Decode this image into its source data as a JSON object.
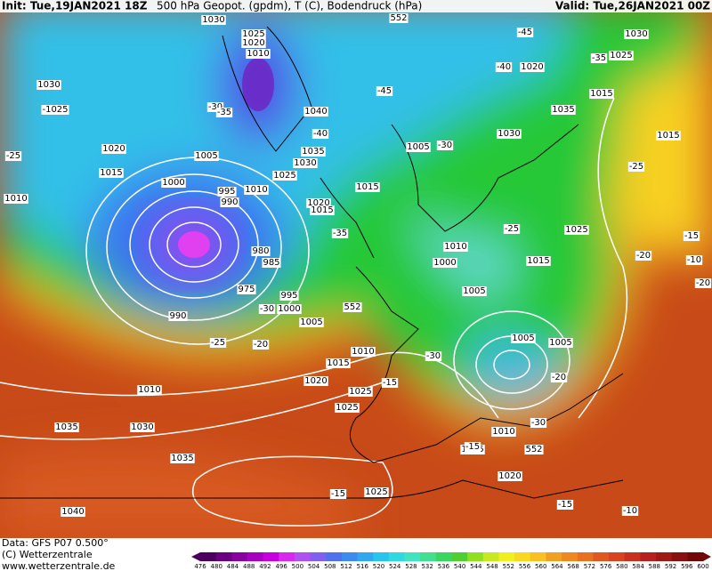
{
  "header": {
    "init": "Init: Tue,19JAN2021 18Z",
    "title": "500 hPa Geopot. (gpdm), T (C), Bodendruck (hPa)",
    "valid": "Valid: Tue,26JAN2021 00Z"
  },
  "footer": {
    "data": "Data: GFS P07 0.500°",
    "copyright": "(C) Wetterzentrale",
    "url": "www.wetterzentrale.de"
  },
  "map": {
    "labels": [
      "1030",
      "1025",
      "1020",
      "1010",
      "-30",
      "-35",
      "1030",
      "-1025",
      "1020",
      "1015",
      "-25",
      "1010",
      "1005",
      "1000",
      "995",
      "990",
      "980",
      "985",
      "975",
      "995",
      "990",
      "1000",
      "-30",
      "1005",
      "-25",
      "-20",
      "552",
      "1010",
      "1015",
      "1020",
      "1025",
      "-15",
      "1010",
      "1035",
      "1030",
      "1025",
      "1040",
      "1035",
      "1030",
      "1010",
      "-40",
      "1025",
      "1020",
      "1015",
      "1005",
      "-30",
      "1015",
      "-35",
      "-25",
      "1010",
      "1000",
      "1005",
      "1015",
      "1005",
      "1005",
      "-30",
      "-30",
      "1010",
      "552",
      "1015",
      "1020",
      "-15",
      "1025",
      "-15",
      "-10",
      "1040",
      "1035",
      "1030",
      "1025",
      "1020",
      "1015",
      "1035",
      "1030",
      "1015",
      "-25",
      "-20",
      "1025",
      "-15",
      "-10",
      "-20",
      "-20",
      "-15",
      "552",
      "-45",
      "-45",
      "-40",
      "-35"
    ]
  },
  "colorbar": {
    "ticks": [
      476,
      480,
      484,
      488,
      492,
      496,
      500,
      504,
      508,
      512,
      516,
      520,
      524,
      528,
      532,
      536,
      540,
      544,
      548,
      552,
      556,
      560,
      564,
      568,
      572,
      576,
      580,
      584,
      588,
      592,
      596,
      600
    ],
    "colors": [
      "#4b0060",
      "#6a0080",
      "#8a00a0",
      "#a800c0",
      "#c800e0",
      "#d828f0",
      "#b050f0",
      "#8060f0",
      "#5070f0",
      "#3c8cf0",
      "#30a8f0",
      "#28c4f0",
      "#30d8e0",
      "#40e4c0",
      "#40e090",
      "#38d860",
      "#50d030",
      "#90e020",
      "#c8e820",
      "#f0f020",
      "#f8d820",
      "#f8c020",
      "#f0a020",
      "#f08820",
      "#e87020",
      "#e05820",
      "#d84420",
      "#c83020",
      "#b82020",
      "#a01818",
      "#881010",
      "#700808"
    ]
  }
}
